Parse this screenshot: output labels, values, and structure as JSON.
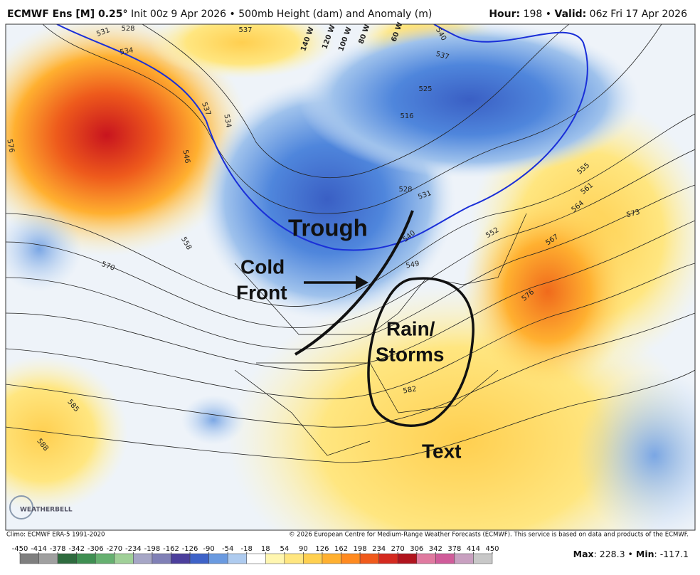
{
  "header": {
    "left": [
      {
        "text": "ECMWF Ens [M] 0.25°",
        "bold": true
      },
      {
        "text": " Init 00z 9 Apr 2026 • 500mb Height (dam) and Anomaly (m)",
        "bold": false
      }
    ],
    "right": [
      {
        "text": "Hour:",
        "bold": true
      },
      {
        "text": " 198 • ",
        "bold": false
      },
      {
        "text": "Valid:",
        "bold": true
      },
      {
        "text": " 06z Fri 17 Apr 2026",
        "bold": false
      }
    ]
  },
  "annotations": {
    "trough": "Trough",
    "cold_front": [
      "Cold",
      "Front"
    ],
    "rain_storms": [
      "Rain/",
      "Storms"
    ],
    "text": "Text"
  },
  "longitude_labels": [
    "140 W",
    "120 W",
    "100 W",
    "80 W",
    "60 W"
  ],
  "contour_labels": [
    "531",
    "528",
    "534",
    "537",
    "537",
    "540",
    "525",
    "516",
    "528",
    "531",
    "534",
    "537",
    "546",
    "576",
    "558",
    "570",
    "585",
    "588",
    "552",
    "549",
    "540",
    "555",
    "561",
    "564",
    "567",
    "573",
    "576",
    "582"
  ],
  "logo": "WEATHERBELL",
  "footer": {
    "climo": "Climo: ECMWF ERA-5 1991-2020",
    "copyright": "© 2026 European Centre for Medium-Range Weather Forecasts (ECMWF). This service is based on data and products of the ECMWF."
  },
  "colorbar": {
    "ticks": [
      -450,
      -414,
      -378,
      -342,
      -306,
      -270,
      -234,
      -198,
      -162,
      -126,
      -90,
      -54,
      -18,
      18,
      54,
      90,
      126,
      162,
      198,
      234,
      270,
      306,
      342,
      378,
      414,
      450
    ],
    "colors": [
      "#7f7f7f",
      "#a0a0a0",
      "#2e6b3e",
      "#3f8f52",
      "#66b070",
      "#a0d098",
      "#a6a6c6",
      "#8080b6",
      "#4c3f9c",
      "#3e63c8",
      "#6a9ae0",
      "#aecbef",
      "#ffffff",
      "#fff6b0",
      "#ffe680",
      "#ffd050",
      "#ffb030",
      "#ff8a20",
      "#f05a1c",
      "#d42a20",
      "#b0141e",
      "#e07aa0",
      "#d05c9a",
      "#c8a0c0",
      "#c8c8c8"
    ]
  },
  "extremes": [
    {
      "text": "Max",
      "bold": true
    },
    {
      "text": ": 228.3 • ",
      "bold": false
    },
    {
      "text": "Min",
      "bold": true
    },
    {
      "text": ": -117.1",
      "bold": false
    }
  ]
}
